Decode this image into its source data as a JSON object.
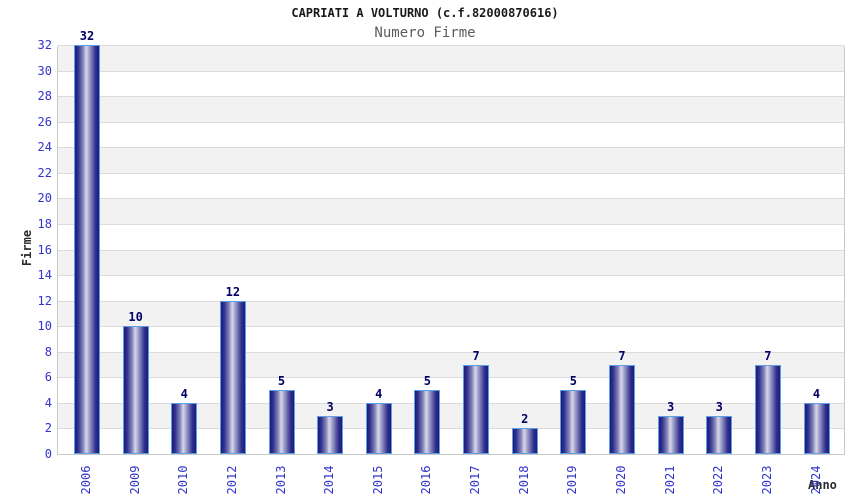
{
  "chart_data": {
    "type": "bar",
    "title": "CAPRIATI A VOLTURNO (c.f.82000870616)",
    "subtitle": "Numero Firme",
    "xlabel": "Anno",
    "ylabel": "Firme",
    "categories": [
      "2006",
      "2009",
      "2010",
      "2012",
      "2013",
      "2014",
      "2015",
      "2016",
      "2017",
      "2018",
      "2019",
      "2020",
      "2021",
      "2022",
      "2023",
      "2024"
    ],
    "values": [
      32,
      10,
      4,
      12,
      5,
      3,
      4,
      5,
      7,
      2,
      5,
      7,
      3,
      3,
      7,
      4
    ],
    "ylim": [
      0,
      32
    ],
    "ytick_step": 2,
    "legend": "none",
    "grid": "horizontal gridlines every 2 units with alternating white/gray background bands",
    "colors": {
      "bar_edge": "#1c1c78",
      "bar_highlight": "#d8d8ea",
      "bar_border": "#5c9fe6",
      "tick_label_blue": "#3333cc",
      "value_label_navy": "#000066",
      "band_gray": "#f2f2f2",
      "gridline": "#dcdcdc",
      "title_color": "#1a1a1a",
      "subtitle_color": "#5c5c5c"
    }
  }
}
